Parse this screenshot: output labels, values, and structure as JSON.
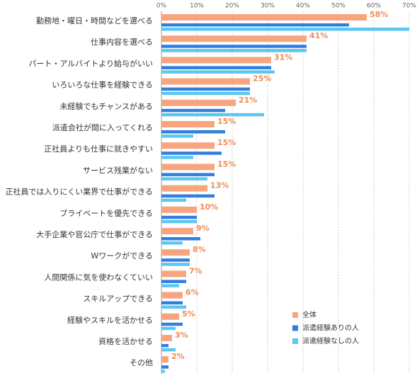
{
  "chart_data": {
    "type": "bar",
    "orientation": "horizontal",
    "categories": [
      "勤務地・曜日・時間などを選べる",
      "仕事内容を選べる",
      "パート・アルバイトより給与がいい",
      "いろいろな仕事を経験できる",
      "未経験でもチャンスがある",
      "派遣会社が間に入ってくれる",
      "正社員よりも仕事に就きやすい",
      "サービス残業がない",
      "正社員では入りにくい業界で仕事ができる",
      "プライベートを優先できる",
      "大手企業や官公庁で仕事ができる",
      "Wワークができる",
      "人間関係に気を使わなくていい",
      "スキルアップできる",
      "経験やスキルを活かせる",
      "資格を活かせる",
      "その他"
    ],
    "series": [
      {
        "name": "全体",
        "color": "#f6a57f",
        "values": [
          58,
          41,
          31,
          25,
          21,
          15,
          15,
          15,
          13,
          10,
          9,
          8,
          7,
          6,
          5,
          3,
          2
        ],
        "value_labels": [
          "58%",
          "41%",
          "31%",
          "25%",
          "21%",
          "15%",
          "15%",
          "15%",
          "13%",
          "10%",
          "9%",
          "8%",
          "7%",
          "6%",
          "5%",
          "3%",
          "2%"
        ]
      },
      {
        "name": "派遣経験ありの人",
        "color": "#2f7fe0",
        "values": [
          53,
          41,
          31,
          25,
          18,
          18,
          17,
          15,
          15,
          10,
          11,
          8,
          7,
          6,
          6,
          2,
          2
        ]
      },
      {
        "name": "派遣経験なしの人",
        "color": "#5cc6f2",
        "values": [
          70,
          41,
          32,
          25,
          29,
          9,
          9,
          13,
          7,
          10,
          6,
          8,
          5,
          7,
          4,
          4,
          1
        ]
      }
    ],
    "xlim": [
      0,
      70
    ],
    "xticks": [
      {
        "value": 0,
        "label": "0%"
      },
      {
        "value": 10,
        "label": "10%"
      },
      {
        "value": 20,
        "label": "20%"
      },
      {
        "value": 30,
        "label": "30%"
      },
      {
        "value": 40,
        "label": "40%"
      },
      {
        "value": 50,
        "label": "50%"
      },
      {
        "value": 60,
        "label": "60%"
      },
      {
        "value": 70,
        "label": "70%"
      }
    ],
    "grid": true,
    "legend": "lower right"
  }
}
